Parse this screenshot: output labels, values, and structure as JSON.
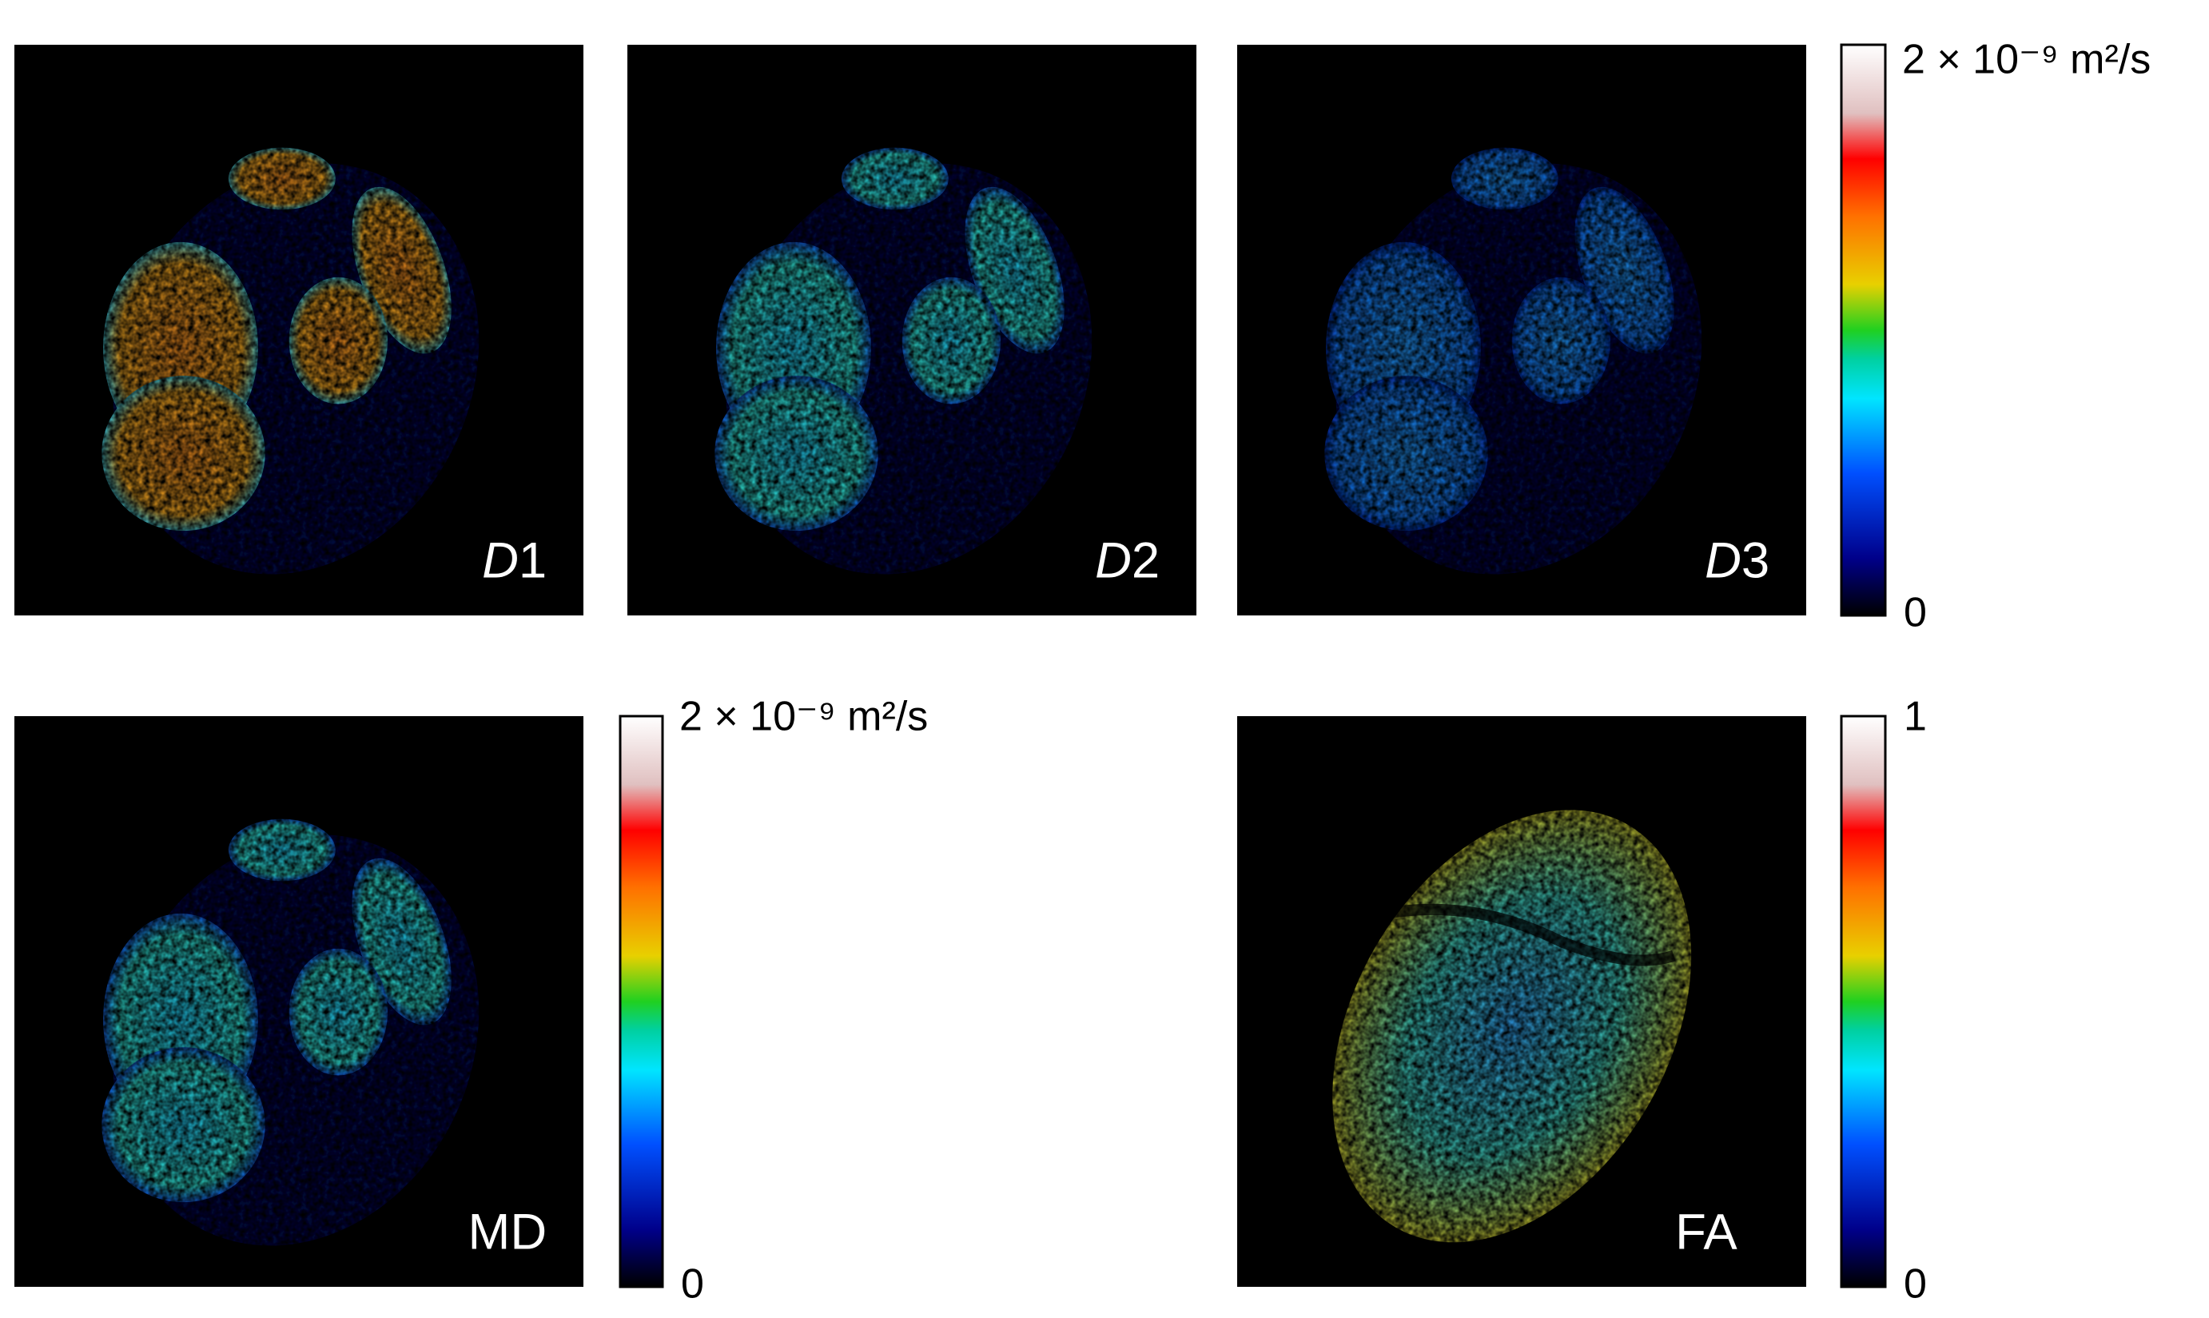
{
  "panels": [
    {
      "label": {
        "italic": "D",
        "index": "1"
      }
    },
    {
      "label": {
        "italic": "D",
        "index": "2"
      }
    },
    {
      "label": {
        "italic": "D",
        "index": "3"
      }
    },
    {
      "label": {
        "text": "MD"
      }
    },
    {
      "label": {
        "text": "FA"
      }
    }
  ],
  "colorbars": [
    {
      "max_label": "2 × 10⁻⁹ m²/s",
      "min_label": "0"
    },
    {
      "max_label": "2 × 10⁻⁹ m²/s",
      "min_label": "0"
    },
    {
      "max_label": "1",
      "min_label": "0"
    }
  ]
}
